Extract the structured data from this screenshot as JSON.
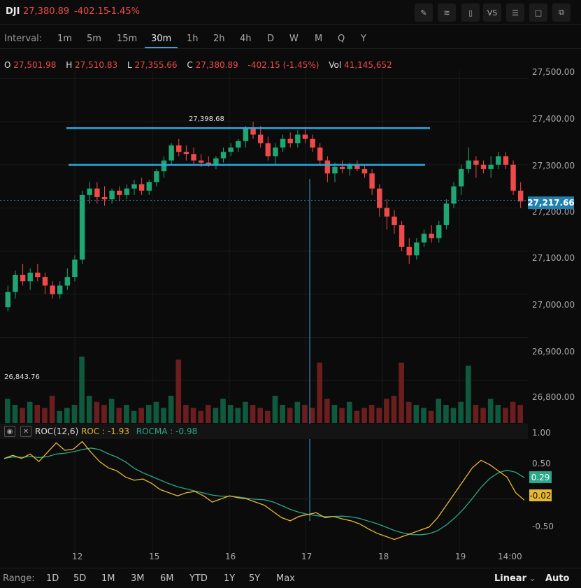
{
  "header": {
    "symbol": "DJI",
    "last": "27,380.89",
    "change": "-402.15",
    "change_pct": "-1.45%"
  },
  "tools": [
    "pencil-icon",
    "lines-icon",
    "candles-icon",
    "VS",
    "settings-sliders-icon",
    "fullscreen-icon",
    "windows-icon"
  ],
  "tool_labels": {
    "vs": "VS"
  },
  "intervals": {
    "label": "Interval:",
    "items": [
      "1m",
      "5m",
      "15m",
      "30m",
      "1h",
      "2h",
      "4h",
      "D",
      "W",
      "M",
      "Q",
      "Y"
    ],
    "active": "30m"
  },
  "ohlc": {
    "o_label": "O",
    "o": "27,501.98",
    "h_label": "H",
    "h": "27,510.83",
    "l_label": "L",
    "l": "27,355.66",
    "c_label": "C",
    "c": "27,380.89",
    "change": "-402.15 (-1.45%)",
    "vol_label": "Vol",
    "vol": "41,145,652"
  },
  "price_axis": [
    "27,500.00",
    "27,400.00",
    "27,300.00",
    "27,200.00",
    "27,100.00",
    "27,000.00",
    "26,900.00",
    "26,800.00"
  ],
  "current_price": "27,217.66",
  "annotations": {
    "high_marker": "27,398.68",
    "low_marker": "26,843.76"
  },
  "indicator": {
    "name": "ROC(12,6)",
    "roc_label": "ROC : -1.93",
    "rocma_label": "ROCMA : -0.98",
    "axis": [
      "1.00",
      "0.50",
      "-0.50"
    ],
    "badge_rocma": "0.29",
    "badge_roc": "-0.02"
  },
  "time_axis": [
    "12",
    "15",
    "16",
    "17",
    "18",
    "19",
    "14:00"
  ],
  "range": {
    "label": "Range:",
    "items": [
      "1D",
      "5D",
      "1M",
      "3M",
      "6M",
      "YTD",
      "1Y",
      "5Y",
      "Max"
    ],
    "scale": "Linear",
    "auto": "Auto"
  },
  "colors": {
    "up": "#1fa672",
    "down": "#ef4a4a",
    "trendline": "#2aa8e0",
    "roc": "#e8b830",
    "rocma": "#2aa88a"
  },
  "chart_data": {
    "type": "candlestick",
    "ylim": [
      26750,
      27520
    ],
    "candles": [
      [
        26970,
        27020,
        26960,
        27005
      ],
      [
        27005,
        27055,
        26990,
        27045
      ],
      [
        27045,
        27070,
        27020,
        27030
      ],
      [
        27030,
        27060,
        27010,
        27050
      ],
      [
        27050,
        27070,
        27030,
        27040
      ],
      [
        27040,
        27050,
        27000,
        27020
      ],
      [
        27020,
        27030,
        26990,
        27000
      ],
      [
        27000,
        27030,
        26990,
        27020
      ],
      [
        27020,
        27060,
        27010,
        27040
      ],
      [
        27040,
        27090,
        27030,
        27080
      ],
      [
        27080,
        27240,
        27070,
        27230
      ],
      [
        27230,
        27260,
        27210,
        27245
      ],
      [
        27245,
        27260,
        27210,
        27225
      ],
      [
        27225,
        27250,
        27205,
        27220
      ],
      [
        27220,
        27245,
        27210,
        27240
      ],
      [
        27240,
        27250,
        27215,
        27230
      ],
      [
        27230,
        27255,
        27220,
        27245
      ],
      [
        27245,
        27265,
        27230,
        27255
      ],
      [
        27255,
        27270,
        27230,
        27240
      ],
      [
        27240,
        27265,
        27230,
        27260
      ],
      [
        27260,
        27290,
        27250,
        27285
      ],
      [
        27285,
        27320,
        27270,
        27310
      ],
      [
        27310,
        27350,
        27300,
        27345
      ],
      [
        27345,
        27360,
        27320,
        27330
      ],
      [
        27330,
        27345,
        27310,
        27325
      ],
      [
        27325,
        27340,
        27300,
        27310
      ],
      [
        27310,
        27325,
        27295,
        27305
      ],
      [
        27305,
        27320,
        27295,
        27300
      ],
      [
        27300,
        27320,
        27290,
        27315
      ],
      [
        27315,
        27340,
        27305,
        27330
      ],
      [
        27330,
        27350,
        27320,
        27340
      ],
      [
        27340,
        27360,
        27330,
        27355
      ],
      [
        27355,
        27390,
        27340,
        27385
      ],
      [
        27385,
        27399,
        27360,
        27370
      ],
      [
        27370,
        27390,
        27340,
        27350
      ],
      [
        27350,
        27365,
        27310,
        27320
      ],
      [
        27320,
        27350,
        27300,
        27340
      ],
      [
        27340,
        27370,
        27330,
        27360
      ],
      [
        27360,
        27375,
        27340,
        27350
      ],
      [
        27350,
        27380,
        27340,
        27370
      ],
      [
        27370,
        27385,
        27350,
        27360
      ],
      [
        27360,
        27370,
        27330,
        27340
      ],
      [
        27340,
        27350,
        27300,
        27310
      ],
      [
        27310,
        27320,
        27260,
        27280
      ],
      [
        27280,
        27305,
        27260,
        27295
      ],
      [
        27295,
        27310,
        27280,
        27290
      ],
      [
        27290,
        27305,
        27275,
        27300
      ],
      [
        27300,
        27310,
        27285,
        27290
      ],
      [
        27290,
        27300,
        27270,
        27280
      ],
      [
        27280,
        27290,
        27230,
        27245
      ],
      [
        27245,
        27255,
        27180,
        27200
      ],
      [
        27200,
        27220,
        27150,
        27180
      ],
      [
        27180,
        27195,
        27140,
        27160
      ],
      [
        27160,
        27170,
        27100,
        27110
      ],
      [
        27110,
        27130,
        27070,
        27090
      ],
      [
        27090,
        27130,
        27080,
        27120
      ],
      [
        27120,
        27150,
        27110,
        27140
      ],
      [
        27140,
        27160,
        27120,
        27130
      ],
      [
        27130,
        27170,
        27120,
        27160
      ],
      [
        27160,
        27220,
        27150,
        27210
      ],
      [
        27210,
        27260,
        27200,
        27250
      ],
      [
        27250,
        27300,
        27230,
        27290
      ],
      [
        27290,
        27340,
        27280,
        27310
      ],
      [
        27310,
        27320,
        27270,
        27300
      ],
      [
        27300,
        27310,
        27280,
        27290
      ],
      [
        27290,
        27320,
        27270,
        27300
      ],
      [
        27300,
        27330,
        27290,
        27320
      ],
      [
        27320,
        27330,
        27290,
        27300
      ],
      [
        27300,
        27310,
        27230,
        27240
      ],
      [
        27240,
        27260,
        27200,
        27215
      ]
    ],
    "volume": [
      8,
      6,
      5,
      7,
      6,
      5,
      9,
      4,
      5,
      6,
      22,
      9,
      7,
      6,
      8,
      5,
      6,
      4,
      5,
      6,
      7,
      5,
      9,
      21,
      6,
      5,
      4,
      6,
      5,
      8,
      6,
      5,
      7,
      6,
      5,
      4,
      9,
      6,
      5,
      7,
      6,
      5,
      20,
      8,
      6,
      5,
      7,
      4,
      5,
      6,
      5,
      8,
      9,
      20,
      7,
      6,
      5,
      4,
      8,
      6,
      5,
      7,
      19,
      6,
      5,
      8,
      6,
      5,
      7,
      6
    ],
    "trendlines": [
      27385,
      27300
    ],
    "roc": [
      0.65,
      0.7,
      0.65,
      0.72,
      0.6,
      0.75,
      0.9,
      0.78,
      0.8,
      0.92,
      0.75,
      0.6,
      0.5,
      0.45,
      0.35,
      0.3,
      0.32,
      0.25,
      0.15,
      0.1,
      0.05,
      0.1,
      0.12,
      0.05,
      -0.05,
      0.0,
      0.05,
      0.02,
      0.0,
      -0.05,
      -0.1,
      -0.2,
      -0.3,
      -0.35,
      -0.28,
      -0.25,
      -0.22,
      -0.3,
      -0.28,
      -0.32,
      -0.35,
      -0.4,
      -0.48,
      -0.55,
      -0.6,
      -0.65,
      -0.6,
      -0.55,
      -0.5,
      -0.45,
      -0.3,
      -0.1,
      0.1,
      0.3,
      0.5,
      0.62,
      0.55,
      0.45,
      0.35,
      0.1,
      -0.02
    ]
  }
}
